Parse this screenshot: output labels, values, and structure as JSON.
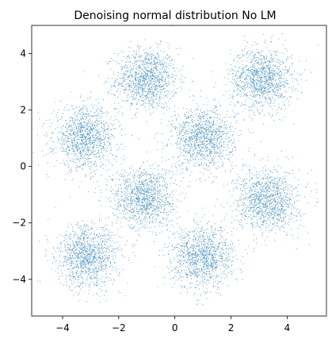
{
  "chart_data": {
    "type": "scatter",
    "title": "Denoising normal distribution No LM",
    "xlabel": "",
    "ylabel": "",
    "xlim": [
      -5.1,
      5.4
    ],
    "ylim": [
      -5.3,
      5.0
    ],
    "xticks": [
      -4,
      -2,
      0,
      2,
      4
    ],
    "yticks": [
      -4,
      -2,
      0,
      2,
      4
    ],
    "xtick_labels": [
      "−4",
      "−2",
      "0",
      "2",
      "4"
    ],
    "ytick_labels": [
      "−4",
      "−2",
      "0",
      "2",
      "4"
    ],
    "grid": false,
    "legend": "none",
    "marker_color": "#1f77b4",
    "aspect": "equal",
    "series": [
      {
        "clusters": [
          {
            "center": [
              -1.0,
              3.1
            ],
            "std": 0.55,
            "points": 1200
          },
          {
            "center": [
              3.1,
              3.1
            ],
            "std": 0.55,
            "points": 1200
          },
          {
            "center": [
              -3.2,
              1.0
            ],
            "std": 0.55,
            "points": 1200
          },
          {
            "center": [
              1.0,
              1.0
            ],
            "std": 0.55,
            "points": 1200
          },
          {
            "center": [
              -1.1,
              -1.1
            ],
            "std": 0.55,
            "points": 1200
          },
          {
            "center": [
              3.3,
              -1.2
            ],
            "std": 0.55,
            "points": 1200
          },
          {
            "center": [
              -3.1,
              -3.2
            ],
            "std": 0.55,
            "points": 1200
          },
          {
            "center": [
              1.0,
              -3.2
            ],
            "std": 0.55,
            "points": 1200
          }
        ]
      }
    ]
  }
}
